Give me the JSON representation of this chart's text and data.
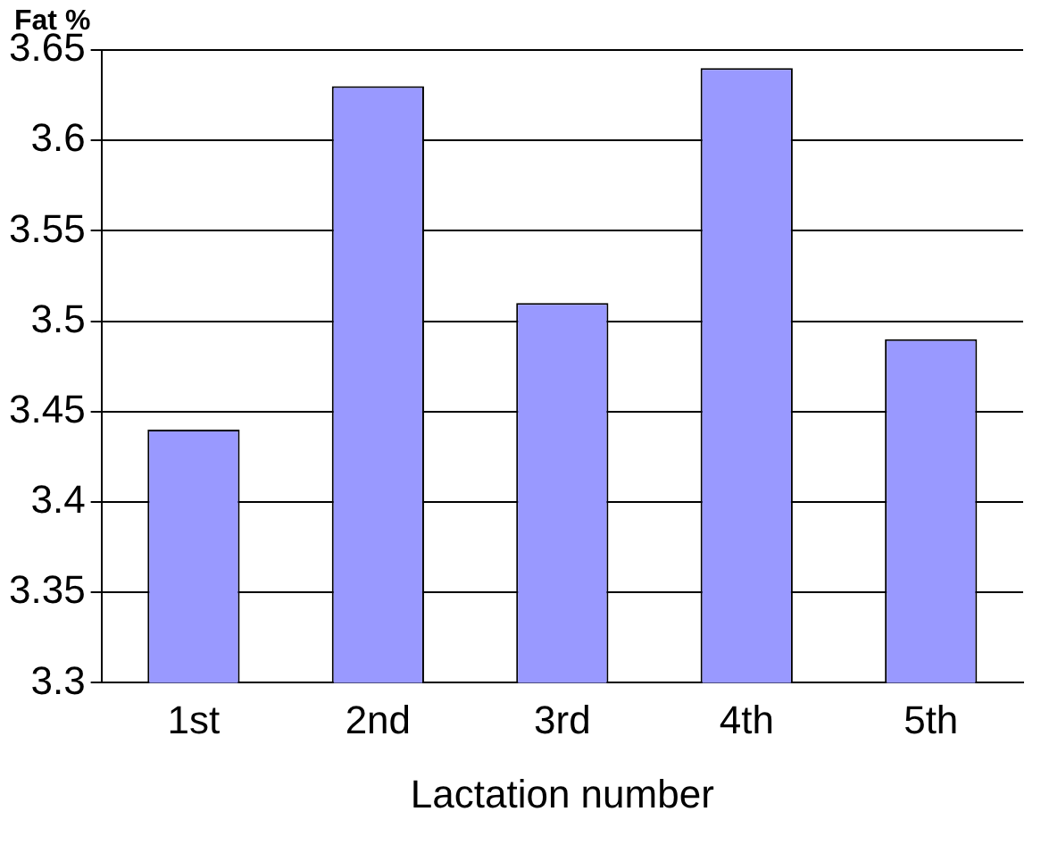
{
  "chart_data": {
    "type": "bar",
    "ylabel": "Fat %",
    "xlabel": "Lactation number",
    "categories": [
      "1st",
      "2nd",
      "3rd",
      "4th",
      "5th"
    ],
    "values": [
      3.44,
      3.63,
      3.51,
      3.64,
      3.49
    ],
    "color": "#9999ff",
    "ylim": [
      3.3,
      3.65
    ],
    "yticks": [
      3.3,
      3.35,
      3.4,
      3.45,
      3.5,
      3.55,
      3.6,
      3.65
    ],
    "grid": "y",
    "legend": false
  }
}
